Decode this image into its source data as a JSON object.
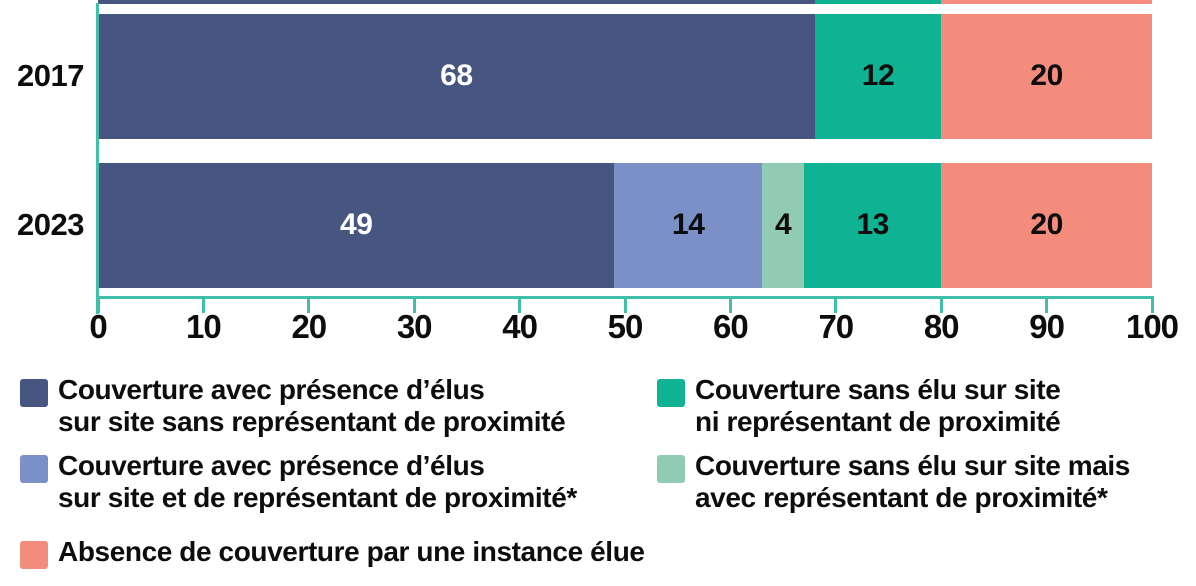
{
  "chart_data": {
    "type": "bar",
    "orientation": "horizontal-stacked",
    "categories": [
      "2017",
      "2023"
    ],
    "series": [
      {
        "name": "Couverture avec présence d’élus sur site sans représentant de proximité",
        "values": [
          68,
          49
        ],
        "color": "#475680",
        "value_label_color": "#ffffff"
      },
      {
        "name": "Couverture avec présence d’élus sur site et de représentant de proximité*",
        "values": [
          0,
          14
        ],
        "color": "#7c90c8",
        "value_label_color": "#0d0d0d"
      },
      {
        "name": "Couverture sans élu sur site mais avec représentant de proximité*",
        "values": [
          0,
          4
        ],
        "color": "#92cbb4",
        "value_label_color": "#0d0d0d"
      },
      {
        "name": "Couverture sans élu sur site ni représentant de proximité",
        "values": [
          12,
          13
        ],
        "color": "#10b294",
        "value_label_color": "#0d0d0d"
      },
      {
        "name": "Absence de couverture par une instance élue",
        "values": [
          20,
          20
        ],
        "color": "#f48c7e",
        "value_label_color": "#0d0d0d"
      }
    ],
    "xlim": [
      0,
      100
    ],
    "x_ticks": [
      "0",
      "10",
      "20",
      "30",
      "40",
      "50",
      "60",
      "70",
      "80",
      "90",
      "100"
    ],
    "axis_color": "#41bfaa",
    "grid": false,
    "legend_position": "bottom"
  },
  "legend": {
    "items": [
      {
        "series_index": 0,
        "color": "#475680",
        "lines": [
          "Couverture avec présence d’élus",
          "sur site sans représentant de proximité"
        ],
        "col": 0,
        "row": 0
      },
      {
        "series_index": 3,
        "color": "#10b294",
        "lines": [
          "Couverture sans élu sur site",
          "ni représentant de proximité"
        ],
        "col": 1,
        "row": 0
      },
      {
        "series_index": 1,
        "color": "#7c90c8",
        "lines": [
          "Couverture avec présence d’élus",
          "sur site et de représentant de proximité*"
        ],
        "col": 0,
        "row": 1
      },
      {
        "series_index": 2,
        "color": "#92cbb4",
        "lines": [
          "Couverture sans élu sur site mais",
          "avec représentant de proximité*"
        ],
        "col": 1,
        "row": 1
      },
      {
        "series_index": 4,
        "color": "#f48c7e",
        "lines": [
          "Absence de couverture par une instance élue"
        ],
        "col": 0,
        "row": 2
      }
    ]
  }
}
